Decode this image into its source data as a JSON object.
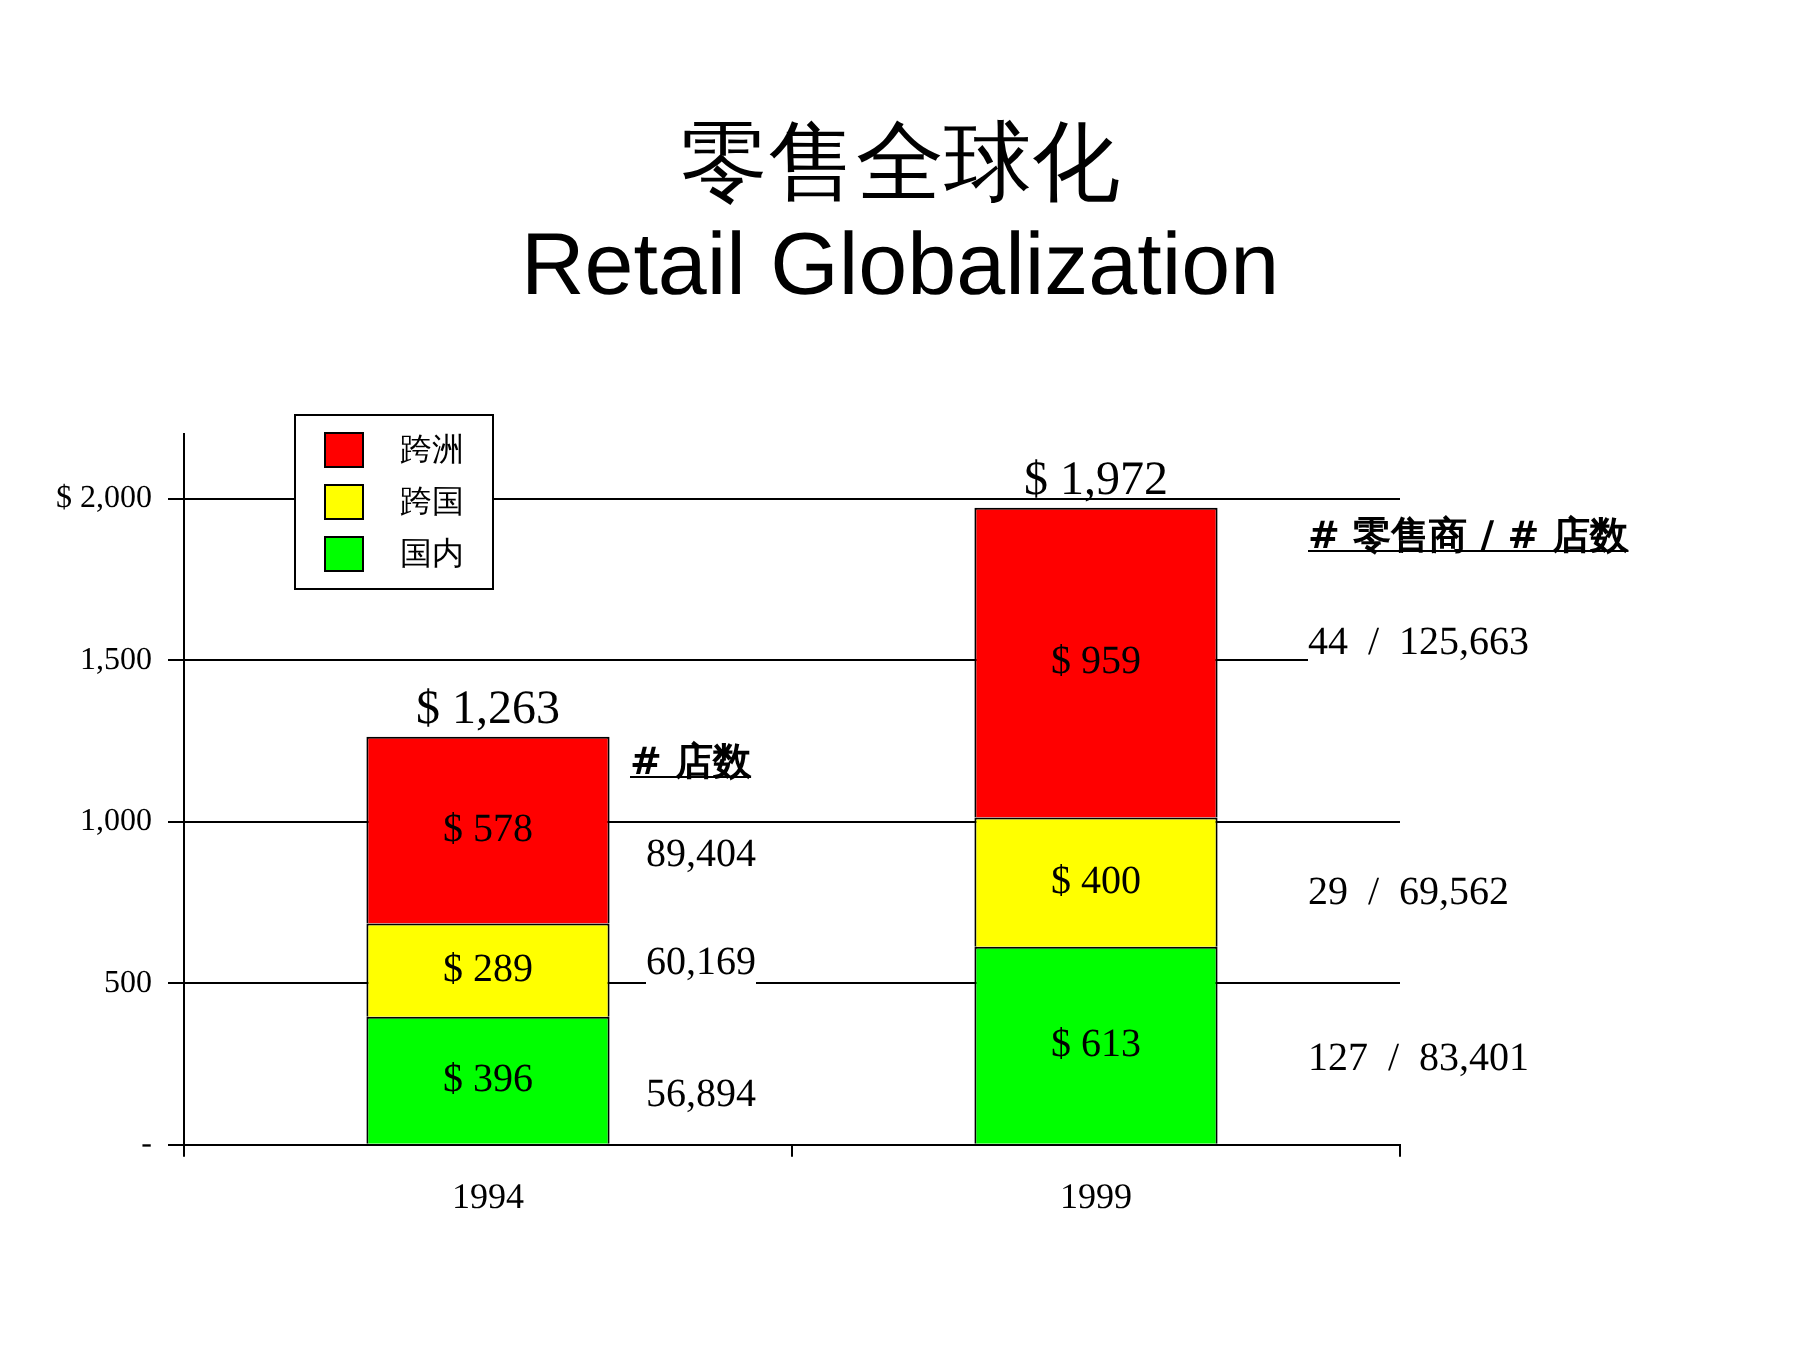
{
  "chart_data": {
    "type": "bar",
    "title": "零售全球化",
    "subtitle": "Retail Globalization",
    "categories": [
      "1994",
      "1999"
    ],
    "stacked": true,
    "series": [
      {
        "name": "国内",
        "color": "#00ff00",
        "values": [
          396,
          613
        ],
        "value_labels": [
          "$ 396",
          "$ 613"
        ]
      },
      {
        "name": "跨国",
        "color": "#ffff00",
        "values": [
          289,
          400
        ],
        "value_labels": [
          "$ 289",
          "$ 400"
        ]
      },
      {
        "name": "跨洲",
        "color": "#ff0000",
        "values": [
          578,
          959
        ],
        "value_labels": [
          "$ 578",
          "$ 959"
        ]
      }
    ],
    "totals": [
      "$ 1,263",
      "$ 1,972"
    ],
    "ylim": [
      0,
      2200
    ],
    "yticks": [
      {
        "value": 0,
        "label": "-"
      },
      500,
      {
        "value": 1000,
        "label": "1,000"
      },
      {
        "value": 1500,
        "label": "1,500"
      },
      {
        "value": 2000,
        "label": "$ 2,000"
      }
    ],
    "grid": "y",
    "legend": "top left",
    "annotations": [
      "# 店数",
      "89,404",
      "60,169",
      "56,894",
      "# 零售商 / # 店数",
      "44  /  125,663",
      "29  /  69,562",
      "127  /  83,401"
    ]
  }
}
